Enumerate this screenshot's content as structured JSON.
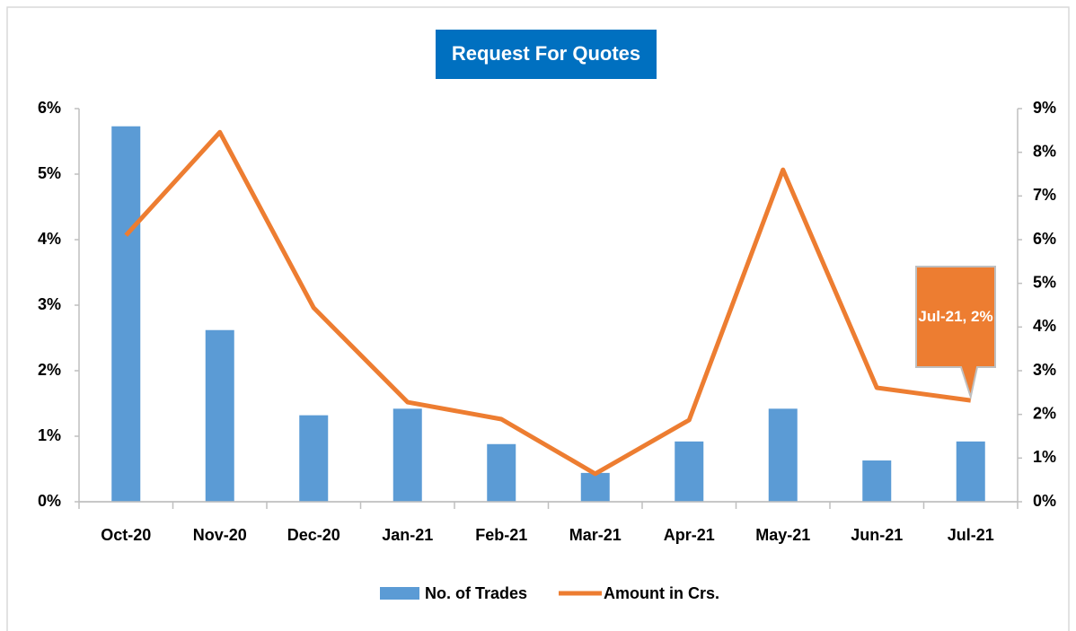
{
  "chart_data": {
    "type": "combo",
    "title": "Request For Quotes",
    "categories": [
      "Oct-20",
      "Nov-20",
      "Dec-20",
      "Jan-21",
      "Feb-21",
      "Mar-21",
      "Apr-21",
      "May-21",
      "Jun-21",
      "Jul-21"
    ],
    "series": [
      {
        "name": "No. of Trades",
        "type": "bar",
        "color": "#5b9bd5",
        "values": [
          5.73,
          2.62,
          1.32,
          1.42,
          0.88,
          0.44,
          0.92,
          1.42,
          0.63,
          0.92
        ]
      },
      {
        "name": "Amount in Crs.",
        "type": "line",
        "axis": "y2",
        "color": "#ed7d31",
        "values": [
          6.1,
          8.46,
          4.44,
          2.28,
          1.89,
          0.64,
          1.87,
          7.6,
          2.61,
          2.32
        ],
        "value_labels": [
          null,
          null,
          null,
          null,
          null,
          null,
          null,
          null,
          null,
          "Jul-21, 2%"
        ]
      }
    ],
    "ylim": [
      0,
      6
    ],
    "yticks": [
      {
        "value": 0,
        "label": "0%"
      },
      {
        "value": 1,
        "label": "1%"
      },
      {
        "value": 2,
        "label": "2%"
      },
      {
        "value": 3,
        "label": "3%"
      },
      {
        "value": 4,
        "label": "4%"
      },
      {
        "value": 5,
        "label": "5%"
      },
      {
        "value": 6,
        "label": "6%"
      }
    ],
    "y2lim": [
      0,
      9
    ],
    "y2ticks": [
      {
        "value": 0,
        "label": "0%"
      },
      {
        "value": 1,
        "label": "1%"
      },
      {
        "value": 2,
        "label": "2%"
      },
      {
        "value": 3,
        "label": "3%"
      },
      {
        "value": 4,
        "label": "4%"
      },
      {
        "value": 5,
        "label": "5%"
      },
      {
        "value": 6,
        "label": "6%"
      },
      {
        "value": 7,
        "label": "7%"
      },
      {
        "value": 8,
        "label": "8%"
      },
      {
        "value": 9,
        "label": "9%"
      }
    ],
    "legend": "bottom",
    "grid": false
  }
}
